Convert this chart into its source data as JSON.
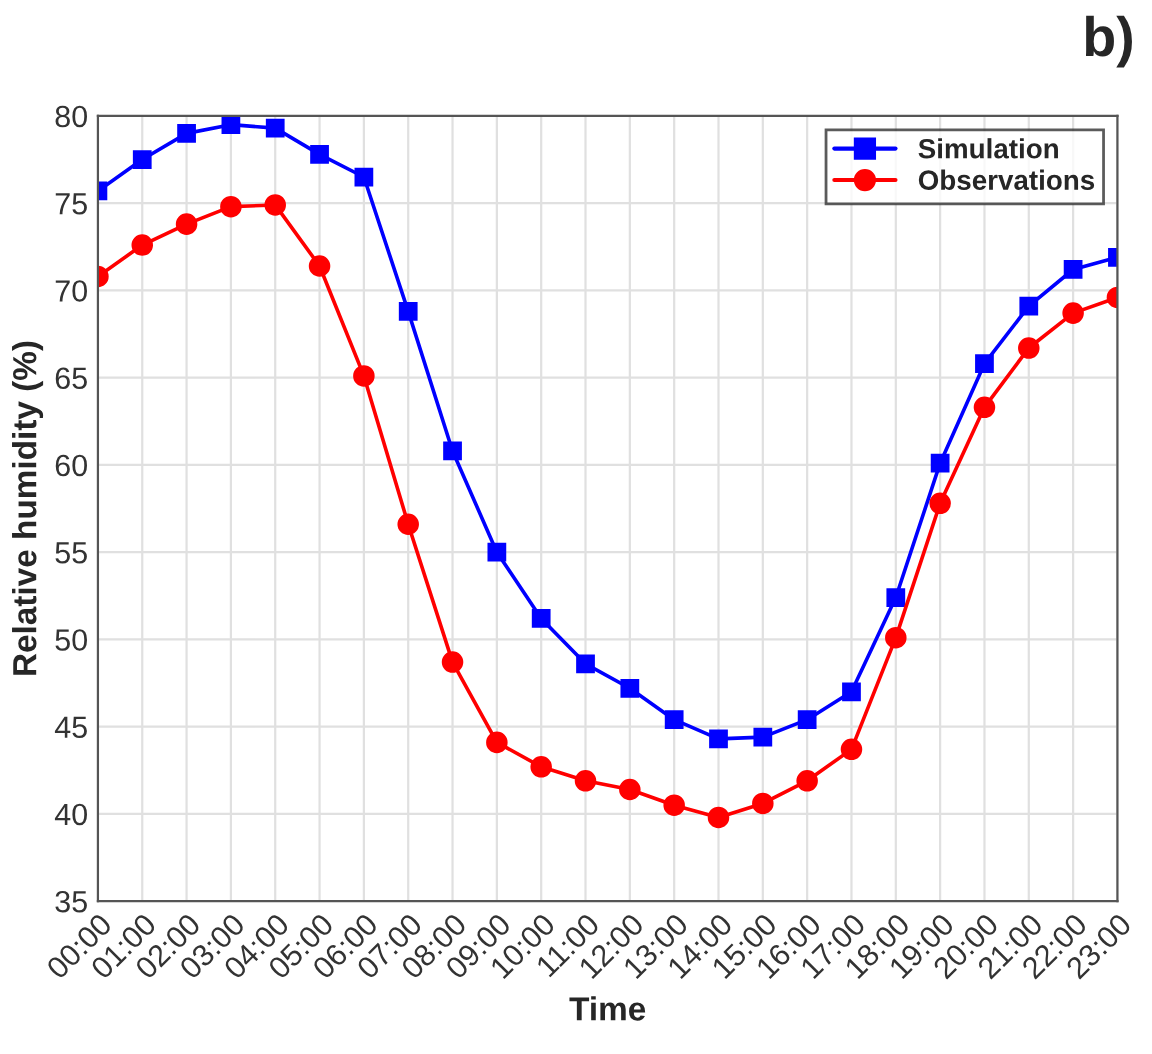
{
  "chart_data": {
    "type": "line",
    "xlabel": "Time",
    "ylabel": "Relative humidity (%)",
    "annotations": [
      "b)"
    ],
    "categories": [
      "00:00",
      "01:00",
      "02:00",
      "03:00",
      "04:00",
      "05:00",
      "06:00",
      "07:00",
      "08:00",
      "09:00",
      "10:00",
      "11:00",
      "12:00",
      "13:00",
      "14:00",
      "15:00",
      "16:00",
      "17:00",
      "18:00",
      "19:00",
      "20:00",
      "21:00",
      "22:00",
      "23:00"
    ],
    "series": [
      {
        "name": "Simulation",
        "color": "#0000ff",
        "marker": "square",
        "values": [
          75.7,
          77.5,
          79.0,
          79.5,
          79.3,
          77.8,
          76.5,
          68.8,
          60.8,
          55.0,
          51.2,
          48.6,
          47.2,
          45.4,
          44.3,
          44.4,
          45.4,
          47.0,
          52.4,
          60.1,
          65.8,
          69.1,
          71.2,
          71.9
        ]
      },
      {
        "name": "Observations",
        "color": "#ff0000",
        "marker": "circle",
        "values": [
          70.8,
          72.6,
          73.8,
          74.8,
          74.9,
          71.4,
          65.1,
          56.6,
          48.7,
          44.1,
          42.7,
          41.9,
          41.4,
          40.5,
          39.8,
          40.6,
          41.9,
          43.7,
          50.1,
          57.8,
          63.3,
          66.7,
          68.7,
          69.6
        ]
      }
    ],
    "ylim": [
      35,
      80
    ],
    "yticks": [
      35,
      40,
      45,
      50,
      55,
      60,
      65,
      70,
      75,
      80
    ],
    "grid": true,
    "legend": "top right",
    "line_style": "solid"
  }
}
